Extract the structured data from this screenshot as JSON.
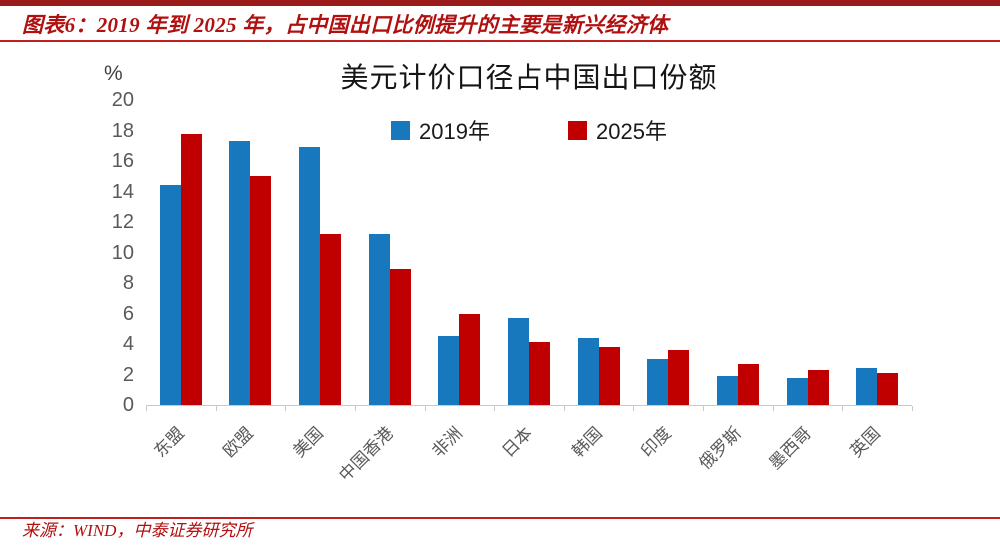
{
  "header": {
    "title": "图表6：2019 年到 2025 年，占中国出口比例提升的主要是新兴经济体"
  },
  "colors": {
    "accent_red": "#B01010",
    "header_bar": "#9B1B1B",
    "rule_red": "#C02020",
    "series_blue": "#1878BE",
    "series_red": "#C00000",
    "axis_gray": "#595959"
  },
  "chart_data": {
    "type": "bar",
    "title": "美元计价口径占中国出口份额",
    "unit_label": "%",
    "categories": [
      "东盟",
      "欧盟",
      "美国",
      "中国香港",
      "非洲",
      "日本",
      "韩国",
      "印度",
      "俄罗斯",
      "墨西哥",
      "英国"
    ],
    "series": [
      {
        "name": "2019年",
        "color": "#1878BE",
        "values": [
          14.4,
          17.3,
          16.9,
          11.2,
          4.5,
          5.7,
          4.4,
          3.0,
          1.9,
          1.8,
          2.4
        ]
      },
      {
        "name": "2025年",
        "color": "#C00000",
        "values": [
          17.8,
          15.0,
          11.2,
          8.9,
          6.0,
          4.1,
          3.8,
          3.6,
          2.7,
          2.3,
          2.1
        ]
      }
    ],
    "ylim": [
      0,
      20
    ],
    "yticks": [
      0,
      2,
      4,
      6,
      8,
      10,
      12,
      14,
      16,
      18,
      20
    ],
    "grid": false,
    "legend_position": "top"
  },
  "footer": {
    "source": "来源：WIND，中泰证券研究所"
  }
}
